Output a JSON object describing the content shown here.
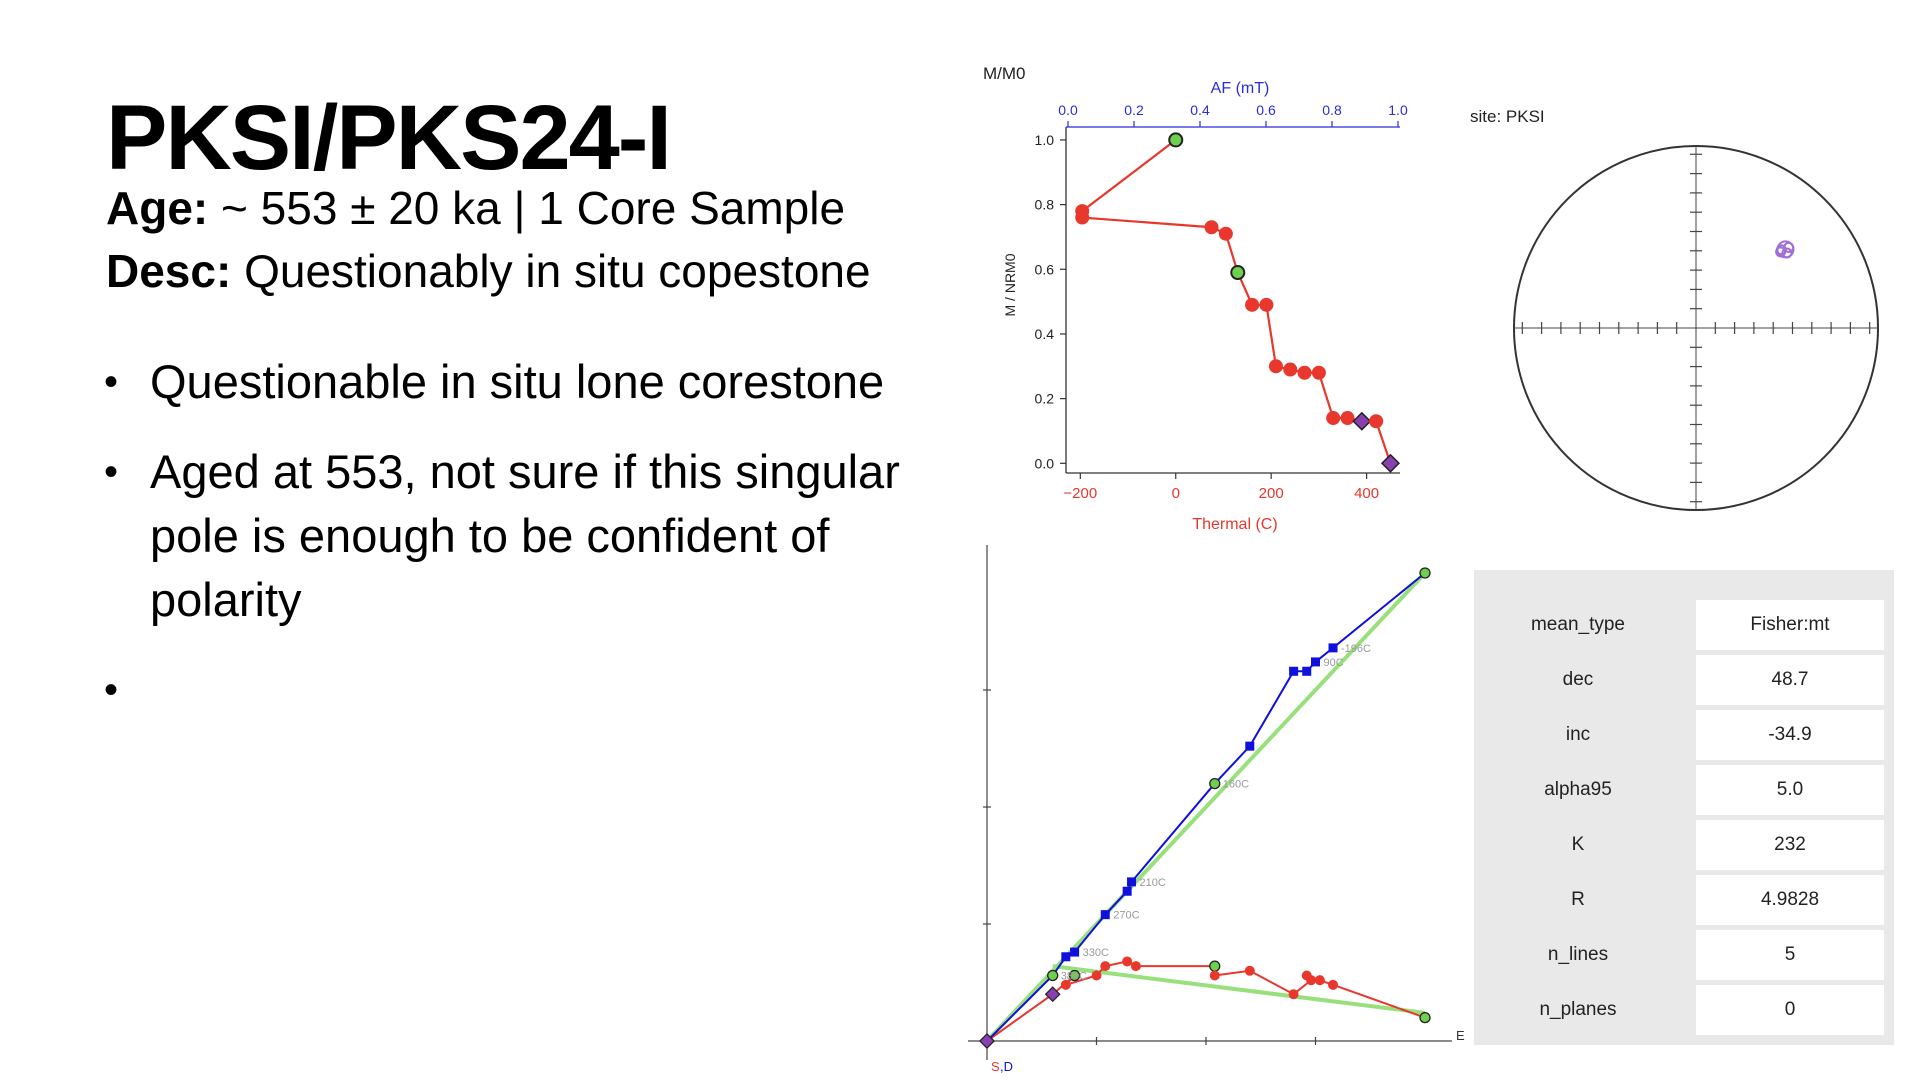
{
  "slide": {
    "title": "PKSI/PKS24-I",
    "age_label": "Age:",
    "age_value": "~ 553 ± 20 ka | 1 Core Sample",
    "desc_label": "Desc:",
    "desc_value": "Questionably in situ copestone",
    "bullets": [
      "Questionable in situ lone corestone",
      "Aged at 553, not sure if this singular pole is enough to be confident of polarity",
      ""
    ]
  },
  "demag_plot": {
    "corner_label": "M/M0",
    "top_axis_label": "AF (mT)",
    "top_ticks": [
      "0.0",
      "0.2",
      "0.4",
      "0.6",
      "0.8",
      "1.0"
    ],
    "y_axis_label": "M / NRM0",
    "y_ticks": [
      "0.0",
      "0.2",
      "0.4",
      "0.6",
      "0.8",
      "1.0"
    ],
    "x_axis_label": "Thermal (C)",
    "x_ticks": [
      "−200",
      "0",
      "200",
      "400"
    ],
    "colors": {
      "af_axis": "#2b2bd9",
      "thermal": "#e8372d",
      "accept_point": "#6fd04f",
      "reject_point": "#8a3fb0"
    }
  },
  "stereonet": {
    "site_label": "site: PKSI",
    "colors": {
      "circle": "#333333",
      "direction": "#a070d8"
    }
  },
  "zijderveld": {
    "axis_label_e": "E",
    "axis_label_bottom_s": "S",
    "axis_label_bottom_d": ",D",
    "point_labels": [
      "-196C",
      "90C",
      "160C",
      "210C",
      "270C",
      "330C",
      "380C"
    ],
    "colors": {
      "horizontal": "#1010dd",
      "vertical": "#e8372d",
      "fit": "#98e07c"
    }
  },
  "stats": {
    "rows": [
      {
        "key": "mean_type",
        "value": "Fisher:mt"
      },
      {
        "key": "dec",
        "value": "48.7"
      },
      {
        "key": "inc",
        "value": "-34.9"
      },
      {
        "key": "alpha95",
        "value": "5.0"
      },
      {
        "key": "K",
        "value": "232"
      },
      {
        "key": "R",
        "value": "4.9828"
      },
      {
        "key": "n_lines",
        "value": "5"
      },
      {
        "key": "n_planes",
        "value": "0"
      }
    ]
  },
  "chart_data": [
    {
      "type": "line",
      "title": "",
      "xlabel": "Thermal (C)",
      "ylabel": "M / NRM0",
      "xlim": [
        -230,
        470
      ],
      "ylim": [
        -0.03,
        1.04
      ],
      "x_ticks": [
        -200,
        0,
        200,
        400
      ],
      "y_ticks": [
        0.0,
        0.2,
        0.4,
        0.6,
        0.8,
        1.0
      ],
      "secondary_x_axis": {
        "label": "AF (mT)",
        "ticks": [
          0.0,
          0.2,
          0.4,
          0.6,
          0.8,
          1.0
        ]
      },
      "series": [
        {
          "x": [
            0,
            -196,
            -196,
            75,
            105,
            130,
            160,
            190,
            210,
            240,
            270,
            300,
            330,
            360,
            390,
            420,
            450
          ],
          "y": [
            1.0,
            0.78,
            0.76,
            0.73,
            0.71,
            0.59,
            0.49,
            0.49,
            0.3,
            0.29,
            0.28,
            0.28,
            0.14,
            0.14,
            0.13,
            0.13,
            0.0
          ],
          "markers": [
            "accept",
            "normal",
            "normal",
            "normal",
            "normal",
            "accept",
            "normal",
            "normal",
            "normal",
            "normal",
            "normal",
            "normal",
            "normal",
            "normal",
            "reject",
            "normal",
            "reject"
          ]
        }
      ],
      "grid": false
    },
    {
      "type": "scatter",
      "title": "site: PKSI",
      "projection": "equal-area",
      "points": [
        {
          "dec": 48.7,
          "inc": -34.9
        },
        {
          "dec": 47.5,
          "inc": -36.5
        },
        {
          "dec": 50.5,
          "inc": -35.5
        },
        {
          "dec": 49.0,
          "inc": -33.0
        },
        {
          "dec": 48.0,
          "inc": -37.5
        }
      ],
      "grid": false
    },
    {
      "type": "line",
      "title": "",
      "xlabel": "E",
      "ylabel": "",
      "xlim": [
        0,
        1.0
      ],
      "ylim": [
        0,
        1.0
      ],
      "series": [
        {
          "name": "",
          "x": [
            0,
            0.15,
            0.18,
            0.2,
            0.27,
            0.32,
            0.33,
            0.52,
            0.6,
            0.7,
            0.73,
            0.75,
            0.79,
            1.0
          ],
          "y": [
            0,
            0.14,
            0.18,
            0.19,
            0.27,
            0.32,
            0.34,
            0.55,
            0.63,
            0.79,
            0.79,
            0.81,
            0.84,
            1.0
          ],
          "markers": [
            "reject",
            "accept",
            "normal",
            "normal",
            "normal",
            "normal",
            "normal",
            "accept",
            "normal",
            "normal",
            "normal",
            "normal",
            "normal",
            "accept"
          ],
          "labels": [
            "",
            "380C",
            "",
            "330C",
            "270C",
            "",
            "210C",
            "160C",
            "",
            "",
            "",
            "90C",
            "-196C",
            ""
          ]
        },
        {
          "name": "",
          "x": [
            0,
            0.15,
            0.2,
            0.18,
            0.25,
            0.27,
            0.32,
            0.34,
            0.52,
            0.52,
            0.6,
            0.7,
            0.74,
            0.73,
            0.76,
            0.79,
            1.0
          ],
          "y": [
            0,
            0.1,
            0.14,
            0.12,
            0.14,
            0.16,
            0.17,
            0.16,
            0.16,
            0.14,
            0.15,
            0.1,
            0.13,
            0.14,
            0.13,
            0.12,
            0.05
          ],
          "markers": [
            "reject",
            "reject",
            "accept",
            "normal",
            "normal",
            "normal",
            "normal",
            "normal",
            "accept",
            "normal",
            "normal",
            "normal",
            "normal",
            "normal",
            "normal",
            "normal",
            "accept"
          ]
        }
      ],
      "fit_lines": [
        {
          "x": [
            0,
            1.0
          ],
          "y": [
            0,
            1.0
          ]
        },
        {
          "x": [
            0.15,
            1.0
          ],
          "y": [
            0.16,
            0.06
          ]
        }
      ],
      "grid": false
    }
  ]
}
